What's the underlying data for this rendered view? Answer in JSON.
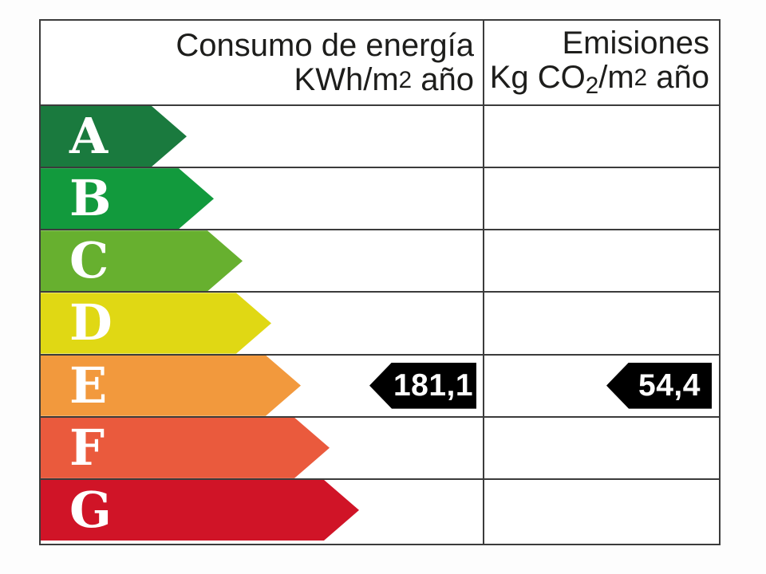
{
  "header": {
    "consumption": {
      "line1": "Consumo de energía",
      "line2_prefix": "KWh/m",
      "line2_exp": "2",
      "line2_suffix": " año"
    },
    "emissions": {
      "line1": "Emisiones",
      "line2_prefix": "Kg CO",
      "line2_sub": "2",
      "line2_mid": "/m",
      "line2_exp": "2",
      "line2_suffix": " año"
    }
  },
  "scale": [
    {
      "letter": "A",
      "color": "#1a7a3e",
      "arrow_width": 183
    },
    {
      "letter": "B",
      "color": "#129a3d",
      "arrow_width": 217
    },
    {
      "letter": "C",
      "color": "#67b02f",
      "arrow_width": 253
    },
    {
      "letter": "D",
      "color": "#e0d814",
      "arrow_width": 289
    },
    {
      "letter": "E",
      "color": "#f2993d",
      "arrow_width": 326
    },
    {
      "letter": "F",
      "color": "#ea5a3d",
      "arrow_width": 362
    },
    {
      "letter": "G",
      "color": "#d01427",
      "arrow_width": 399
    }
  ],
  "result": {
    "rating": "E",
    "consumption_value": "181,1",
    "emissions_value": "54,4",
    "marker_color": "#000000"
  },
  "chart_data": {
    "type": "table",
    "columns": [
      "Consumo de energía KWh/m2 año",
      "Emisiones Kg CO2/m2 año"
    ],
    "rating_scale": [
      "A",
      "B",
      "C",
      "D",
      "E",
      "F",
      "G"
    ],
    "rating_colors": [
      "#1a7a3e",
      "#129a3d",
      "#67b02f",
      "#e0d814",
      "#f2993d",
      "#ea5a3d",
      "#d01427"
    ],
    "assigned_rating": "E",
    "values": {
      "consumo_de_energia_kwh_m2_ano": 181.1,
      "emisiones_kg_co2_m2_ano": 54.4
    },
    "layout_hints": {
      "arrow_direction_scale": "right",
      "arrow_direction_markers": "left",
      "marker_row": "E",
      "grid": "on"
    }
  }
}
